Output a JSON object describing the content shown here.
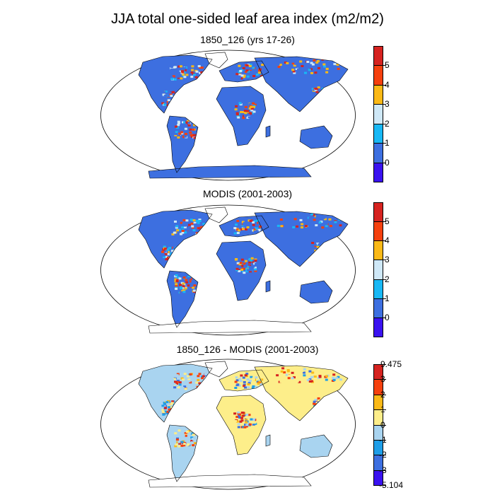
{
  "title": "JJA total one-sided leaf area index (m2/m2)",
  "panels": [
    {
      "title": "1850_126 (yrs 17-26)",
      "colorbar": {
        "colors": [
          "#3a12f0",
          "#3d6fe0",
          "#18b8f5",
          "#cfe8f7",
          "#fbb917",
          "#f5400e",
          "#d62320"
        ],
        "labels": [
          "0",
          "1",
          "2",
          "3",
          "4",
          "5"
        ]
      }
    },
    {
      "title": "MODIS (2001-2003)",
      "colorbar": {
        "colors": [
          "#3a12f0",
          "#3d6fe0",
          "#18b8f5",
          "#cfe8f7",
          "#fbb917",
          "#f5400e",
          "#d62320"
        ],
        "labels": [
          "0",
          "1",
          "2",
          "3",
          "4",
          "5"
        ]
      }
    },
    {
      "title": "1850_126 - MODIS (2001-2003)",
      "colorbar": {
        "colors": [
          "#3a12f0",
          "#3d6fe0",
          "#1e9ee8",
          "#a9d4f0",
          "#fdee8a",
          "#fbb917",
          "#f5400e",
          "#d62320"
        ],
        "labels": [
          "-5.104",
          "-3",
          "-2",
          "-1",
          "0",
          "1",
          "2",
          "3",
          "9.475"
        ]
      }
    }
  ]
}
